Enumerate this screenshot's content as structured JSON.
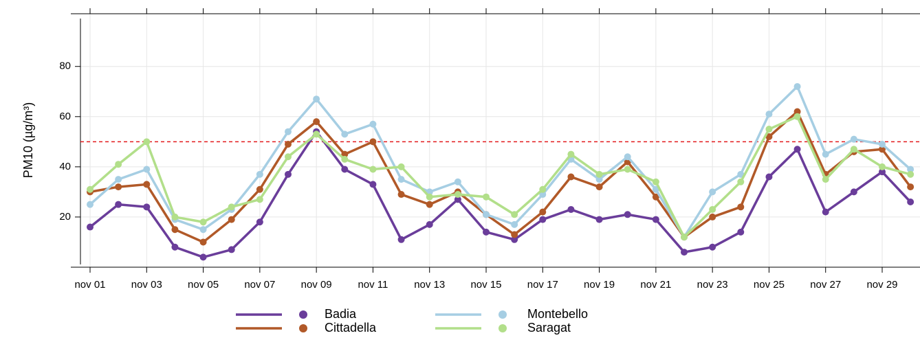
{
  "chart_data": {
    "type": "line",
    "ylabel": "PM10 (µg/m³)",
    "categories": [
      "nov 01",
      null,
      "nov 03",
      null,
      "nov 05",
      null,
      "nov 07",
      null,
      "nov 09",
      null,
      "nov 11",
      null,
      "nov 13",
      null,
      "nov 15",
      null,
      "nov 17",
      null,
      "nov 19",
      null,
      "nov 21",
      null,
      "nov 23",
      null,
      "nov 25",
      null,
      "nov 27",
      null,
      "nov 29",
      null
    ],
    "series": [
      {
        "name": "Badia",
        "color": "#6a3d9a",
        "values": [
          16,
          25,
          24,
          8,
          4,
          7,
          18,
          37,
          54,
          39,
          33,
          11,
          17,
          27,
          14,
          11,
          19,
          23,
          19,
          21,
          19,
          6,
          8,
          14,
          36,
          47,
          22,
          30,
          38,
          26
        ]
      },
      {
        "name": "Cittadella",
        "color": "#b15928",
        "values": [
          30,
          32,
          33,
          15,
          10,
          19,
          31,
          49,
          58,
          45,
          50,
          29,
          25,
          30,
          21,
          13,
          22,
          36,
          32,
          42,
          28,
          12,
          20,
          24,
          52,
          62,
          37,
          46,
          47,
          32
        ]
      },
      {
        "name": "Montebello",
        "color": "#a6cee3",
        "values": [
          25,
          35,
          39,
          19,
          15,
          23,
          37,
          54,
          67,
          53,
          57,
          35,
          30,
          34,
          21,
          17,
          29,
          43,
          35,
          44,
          31,
          12,
          30,
          37,
          61,
          72,
          45,
          51,
          49,
          39
        ]
      },
      {
        "name": "Saragat",
        "color": "#b2df8a",
        "values": [
          31,
          41,
          50,
          20,
          18,
          24,
          27,
          44,
          53,
          43,
          39,
          40,
          28,
          29,
          28,
          21,
          31,
          45,
          37,
          39,
          34,
          12,
          23,
          34,
          55,
          60,
          35,
          47,
          40,
          37
        ]
      }
    ],
    "threshold": 50,
    "threshold_color": "#e31a1c",
    "ylim": [
      0,
      101
    ],
    "yticks": [
      20,
      40,
      60,
      80
    ],
    "grid": true
  }
}
